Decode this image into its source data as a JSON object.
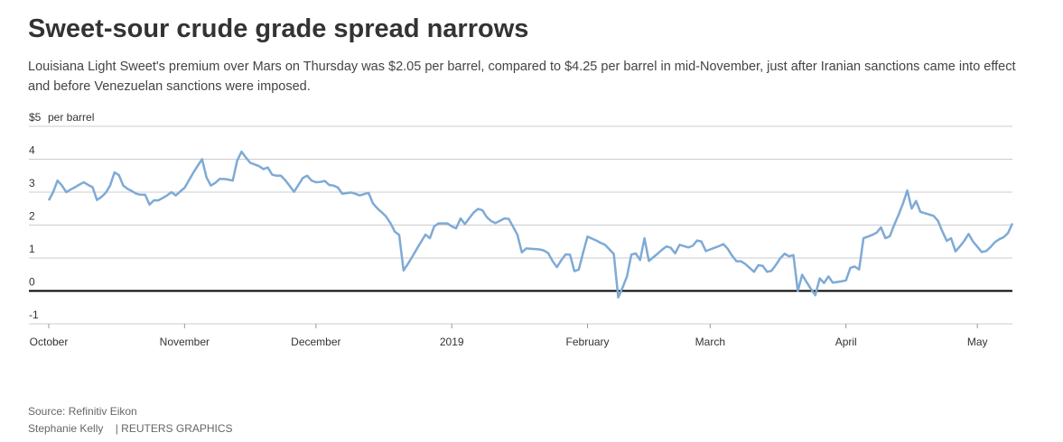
{
  "chart_data": {
    "type": "line",
    "title": "Sweet-sour crude grade spread narrows",
    "subtitle": "Louisiana Light Sweet's premium over Mars on Thursday was $2.05 per barrel, compared to $4.25 per barrel in mid-November, just after Iranian sanctions came into effect and before Venezuelan sanctions were imposed.",
    "y_label": "per barrel",
    "source": "Source: Refinitiv Eikon",
    "credit": "Stephanie Kelly",
    "publisher": "| REUTERS GRAPHICS",
    "color": "#7eaad6",
    "ylim": [
      -1,
      5
    ],
    "yticks": [
      -1,
      0,
      1,
      2,
      3,
      4,
      {
        "value": 5,
        "label": "$5"
      }
    ],
    "grid": true,
    "categories": [
      "October",
      null,
      null,
      null,
      null,
      null,
      null,
      null,
      null,
      null,
      null,
      null,
      null,
      null,
      null,
      null,
      null,
      null,
      null,
      null,
      null,
      null,
      null,
      null,
      null,
      null,
      null,
      null,
      null,
      null,
      null,
      "November",
      null,
      null,
      null,
      null,
      null,
      null,
      null,
      null,
      null,
      null,
      null,
      null,
      null,
      null,
      null,
      null,
      null,
      null,
      null,
      null,
      null,
      null,
      null,
      null,
      null,
      null,
      null,
      null,
      null,
      "December",
      null,
      null,
      null,
      null,
      null,
      null,
      null,
      null,
      null,
      null,
      null,
      null,
      null,
      null,
      null,
      null,
      null,
      null,
      null,
      null,
      null,
      null,
      null,
      null,
      null,
      null,
      null,
      null,
      null,
      null,
      "2019",
      null,
      null,
      null,
      null,
      null,
      null,
      null,
      null,
      null,
      null,
      null,
      null,
      null,
      null,
      null,
      null,
      null,
      null,
      null,
      null,
      null,
      null,
      null,
      null,
      null,
      null,
      null,
      null,
      null,
      null,
      "February",
      null,
      null,
      null,
      null,
      null,
      null,
      null,
      null,
      null,
      null,
      null,
      null,
      null,
      null,
      null,
      null,
      null,
      null,
      null,
      null,
      null,
      null,
      null,
      null,
      null,
      null,
      null,
      "March",
      null,
      null,
      null,
      null,
      null,
      null,
      null,
      null,
      null,
      null,
      null,
      null,
      null,
      null,
      null,
      null,
      null,
      null,
      null,
      null,
      null,
      null,
      null,
      null,
      null,
      null,
      null,
      null,
      null,
      null,
      "April",
      null,
      null,
      null,
      null,
      null,
      null,
      null,
      null,
      null,
      null,
      null,
      null,
      null,
      null,
      null,
      null,
      null,
      null,
      null,
      null,
      null,
      null,
      null,
      null,
      null,
      null,
      null,
      null,
      null,
      "May",
      null,
      null,
      null,
      null,
      null,
      null,
      null,
      null
    ],
    "values": [
      2.75,
      3.0,
      3.35,
      3.2,
      3.0,
      3.08,
      3.15,
      3.23,
      3.3,
      3.22,
      3.15,
      2.76,
      2.85,
      2.98,
      3.2,
      3.6,
      3.52,
      3.2,
      3.1,
      3.03,
      2.95,
      2.92,
      2.92,
      2.62,
      2.75,
      2.75,
      2.82,
      2.9,
      3.0,
      2.9,
      3.02,
      3.13,
      3.36,
      3.59,
      3.8,
      4.0,
      3.45,
      3.2,
      3.28,
      3.4,
      3.4,
      3.38,
      3.35,
      3.95,
      4.23,
      4.05,
      3.89,
      3.84,
      3.79,
      3.7,
      3.75,
      3.53,
      3.5,
      3.5,
      3.36,
      3.19,
      3.01,
      3.22,
      3.43,
      3.5,
      3.35,
      3.3,
      3.31,
      3.34,
      3.22,
      3.2,
      3.14,
      2.95,
      2.97,
      2.99,
      2.95,
      2.9,
      2.94,
      2.98,
      2.66,
      2.51,
      2.39,
      2.26,
      2.06,
      1.8,
      1.7,
      0.62,
      0.82,
      1.04,
      1.27,
      1.49,
      1.71,
      1.6,
      1.96,
      2.05,
      2.05,
      2.05,
      1.96,
      1.9,
      2.2,
      2.03,
      2.21,
      2.38,
      2.49,
      2.45,
      2.24,
      2.12,
      2.06,
      2.13,
      2.2,
      2.19,
      1.95,
      1.7,
      1.17,
      1.29,
      1.28,
      1.27,
      1.26,
      1.23,
      1.15,
      0.91,
      0.72,
      0.93,
      1.11,
      1.1,
      0.6,
      0.65,
      1.17,
      1.65,
      1.59,
      1.53,
      1.46,
      1.4,
      1.26,
      1.12,
      -0.2,
      0.1,
      0.44,
      1.1,
      1.14,
      0.94,
      1.6,
      0.91,
      1.02,
      1.13,
      1.25,
      1.35,
      1.31,
      1.14,
      1.4,
      1.36,
      1.32,
      1.37,
      1.53,
      1.5,
      1.21,
      1.26,
      1.31,
      1.36,
      1.42,
      1.28,
      1.07,
      0.9,
      0.9,
      0.82,
      0.7,
      0.58,
      0.78,
      0.76,
      0.58,
      0.61,
      0.79,
      0.99,
      1.13,
      1.05,
      1.09,
      0.0,
      0.49,
      0.27,
      0.06,
      -0.13,
      0.38,
      0.24,
      0.44,
      0.25,
      0.27,
      0.29,
      0.32,
      0.7,
      0.74,
      0.65,
      1.6,
      1.65,
      1.7,
      1.77,
      1.93,
      1.6,
      1.66,
      2.0,
      2.31,
      2.65,
      3.05,
      2.5,
      2.73,
      2.4,
      2.36,
      2.32,
      2.28,
      2.13,
      1.81,
      1.52,
      1.6,
      1.2,
      1.35,
      1.52,
      1.73,
      1.5,
      1.34,
      1.18,
      1.21,
      1.33,
      1.48,
      1.57,
      1.63,
      1.76,
      2.05
    ]
  }
}
